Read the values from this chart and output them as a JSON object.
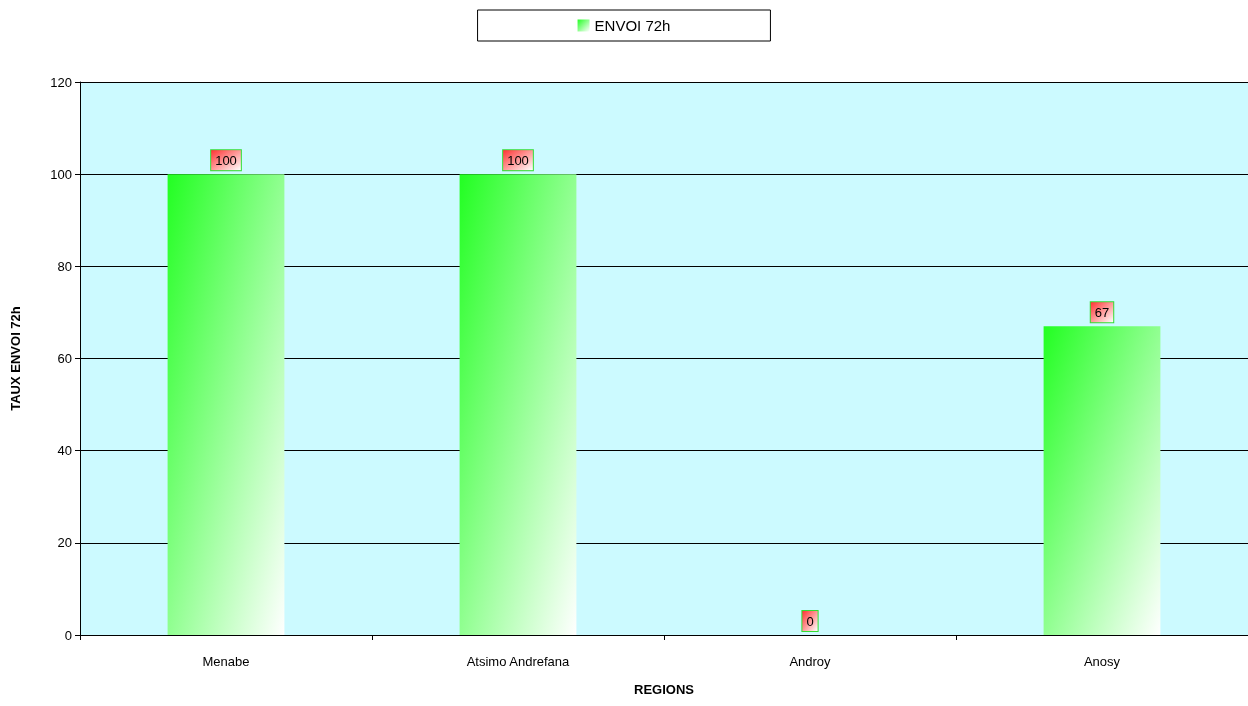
{
  "chart_data": {
    "type": "bar",
    "categories": [
      "Menabe",
      "Atsimo Andrefana",
      "Androy",
      "Anosy"
    ],
    "series": [
      {
        "name": "ENVOI 72h",
        "color": "#22ff22",
        "values": [
          100,
          100,
          0,
          67
        ]
      }
    ],
    "xlabel": "REGIONS",
    "ylabel": "TAUX ENVOI 72h",
    "ylim": [
      0,
      120
    ],
    "yticks": [
      0,
      20,
      40,
      60,
      80,
      100,
      120
    ],
    "grid": "y",
    "legend": "top",
    "data_labels": true
  }
}
